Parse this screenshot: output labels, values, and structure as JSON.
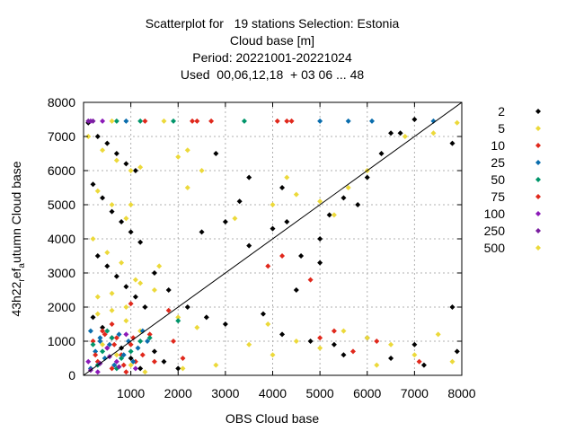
{
  "chart_data": {
    "type": "scatter",
    "title_lines": [
      "Scatterplot for   19 stations Selection: Estonia",
      "Cloud base [m]",
      "Period: 20221001-20221024",
      "Used  00,06,12,18  + 03 06 ... 48"
    ],
    "xlabel": "OBS Cloud base",
    "ylabel_main": "43h22",
    "ylabel_sub": "r",
    "ylabel_mid": "ef",
    "ylabel_sub2": "a",
    "ylabel_tail": "utumn Cloud base",
    "xlim": [
      0,
      8000
    ],
    "ylim": [
      0,
      8000
    ],
    "xticks": [
      1000,
      2000,
      3000,
      4000,
      5000,
      6000,
      7000,
      8000
    ],
    "yticks": [
      0,
      1000,
      2000,
      3000,
      4000,
      5000,
      6000,
      7000,
      8000
    ],
    "grid": true,
    "legend_position": "right",
    "diagonal": true,
    "series": [
      {
        "name": "2",
        "color": "#000000",
        "points": [
          [
            100,
            7400
          ],
          [
            300,
            7000
          ],
          [
            500,
            6800
          ],
          [
            700,
            6500
          ],
          [
            900,
            6200
          ],
          [
            1100,
            6000
          ],
          [
            200,
            5600
          ],
          [
            400,
            5200
          ],
          [
            600,
            4800
          ],
          [
            800,
            4500
          ],
          [
            1000,
            4200
          ],
          [
            1200,
            3900
          ],
          [
            300,
            3500
          ],
          [
            500,
            3200
          ],
          [
            700,
            2900
          ],
          [
            900,
            2600
          ],
          [
            1100,
            2300
          ],
          [
            1300,
            2000
          ],
          [
            200,
            1700
          ],
          [
            400,
            1400
          ],
          [
            600,
            1100
          ],
          [
            800,
            800
          ],
          [
            1000,
            500
          ],
          [
            1200,
            200
          ],
          [
            1500,
            3000
          ],
          [
            1800,
            2500
          ],
          [
            2200,
            2000
          ],
          [
            2600,
            1700
          ],
          [
            3000,
            1500
          ],
          [
            3500,
            3800
          ],
          [
            4000,
            4300
          ],
          [
            4300,
            4500
          ],
          [
            4600,
            3500
          ],
          [
            5000,
            4000
          ],
          [
            5200,
            4700
          ],
          [
            5500,
            5200
          ],
          [
            6000,
            5800
          ],
          [
            6300,
            6500
          ],
          [
            6500,
            7100
          ],
          [
            7000,
            7500
          ],
          [
            7800,
            6800
          ],
          [
            4200,
            1200
          ],
          [
            4800,
            1000
          ],
          [
            5300,
            900
          ],
          [
            6000,
            1100
          ],
          [
            6500,
            500
          ],
          [
            7200,
            300
          ],
          [
            7800,
            2000
          ],
          [
            2500,
            4200
          ],
          [
            3000,
            4500
          ],
          [
            3300,
            5100
          ],
          [
            2800,
            6500
          ],
          [
            3500,
            5800
          ],
          [
            4200,
            5500
          ],
          [
            5800,
            5000
          ],
          [
            6700,
            7100
          ],
          [
            5000,
            3300
          ],
          [
            4500,
            2500
          ],
          [
            3800,
            1800
          ],
          [
            5500,
            600
          ],
          [
            7000,
            900
          ],
          [
            7900,
            700
          ],
          [
            1500,
            700
          ],
          [
            1700,
            400
          ],
          [
            2000,
            200
          ]
        ]
      },
      {
        "name": "5",
        "color": "#ecd93a",
        "points": [
          [
            100,
            7000
          ],
          [
            400,
            6600
          ],
          [
            700,
            6300
          ],
          [
            1000,
            6000
          ],
          [
            300,
            5400
          ],
          [
            600,
            5000
          ],
          [
            900,
            4600
          ],
          [
            200,
            4000
          ],
          [
            500,
            3600
          ],
          [
            800,
            3300
          ],
          [
            1100,
            2800
          ],
          [
            300,
            2300
          ],
          [
            600,
            1900
          ],
          [
            900,
            1600
          ],
          [
            1200,
            1300
          ],
          [
            400,
            900
          ],
          [
            700,
            600
          ],
          [
            1000,
            300
          ],
          [
            1300,
            100
          ],
          [
            1500,
            2500
          ],
          [
            2000,
            1700
          ],
          [
            2400,
            1400
          ],
          [
            2800,
            300
          ],
          [
            3500,
            900
          ],
          [
            4000,
            600
          ],
          [
            4500,
            1000
          ],
          [
            5000,
            800
          ],
          [
            5500,
            1300
          ],
          [
            6000,
            1100
          ],
          [
            6500,
            900
          ],
          [
            7000,
            600
          ],
          [
            7500,
            1200
          ],
          [
            7800,
            400
          ],
          [
            6000,
            6000
          ],
          [
            5600,
            5500
          ],
          [
            5000,
            5100
          ],
          [
            4500,
            5300
          ],
          [
            4300,
            5800
          ],
          [
            4000,
            5000
          ],
          [
            7900,
            7400
          ],
          [
            7400,
            7100
          ],
          [
            6800,
            7000
          ],
          [
            2500,
            6000
          ],
          [
            2200,
            6600
          ],
          [
            3200,
            4600
          ],
          [
            5300,
            4700
          ],
          [
            3900,
            1500
          ],
          [
            6200,
            300
          ],
          [
            2100,
            200
          ]
        ]
      },
      {
        "name": "10",
        "color": "#e0281c",
        "points": [
          [
            200,
            1000
          ],
          [
            500,
            800
          ],
          [
            800,
            600
          ],
          [
            1100,
            400
          ],
          [
            400,
            1300
          ],
          [
            700,
            1100
          ],
          [
            1000,
            900
          ],
          [
            300,
            400
          ],
          [
            600,
            200
          ],
          [
            900,
            100
          ],
          [
            1500,
            400
          ],
          [
            1900,
            1000
          ],
          [
            2100,
            500
          ],
          [
            2700,
            7450
          ],
          [
            2300,
            7450
          ],
          [
            4100,
            7450
          ],
          [
            4300,
            7450
          ],
          [
            4800,
            2800
          ],
          [
            3900,
            3200
          ],
          [
            5000,
            1100
          ],
          [
            5300,
            1300
          ],
          [
            5700,
            700
          ],
          [
            6200,
            1000
          ],
          [
            7100,
            400
          ],
          [
            1400,
            1200
          ]
        ]
      },
      {
        "name": "25",
        "color": "#0a6dad",
        "points": [
          [
            150,
            1300
          ],
          [
            350,
            1100
          ],
          [
            550,
            900
          ],
          [
            750,
            1200
          ],
          [
            950,
            1000
          ],
          [
            1150,
            800
          ],
          [
            250,
            700
          ],
          [
            450,
            500
          ],
          [
            650,
            300
          ],
          [
            850,
            600
          ],
          [
            1050,
            400
          ],
          [
            1250,
            1300
          ],
          [
            1350,
            1000
          ],
          [
            150,
            200
          ],
          [
            350,
            1000
          ],
          [
            5000,
            7450
          ],
          [
            5600,
            7450
          ],
          [
            6100,
            7450
          ],
          [
            7400,
            7450
          ],
          [
            900,
            7450
          ]
        ]
      },
      {
        "name": "50",
        "color": "#00956a",
        "points": [
          [
            200,
            900
          ],
          [
            400,
            700
          ],
          [
            600,
            1100
          ],
          [
            800,
            500
          ],
          [
            1000,
            700
          ],
          [
            1200,
            1000
          ],
          [
            300,
            300
          ],
          [
            500,
            1300
          ],
          [
            700,
            200
          ],
          [
            1400,
            1100
          ],
          [
            1900,
            7450
          ],
          [
            2000,
            1600
          ],
          [
            3400,
            7450
          ],
          [
            1200,
            7450
          ],
          [
            700,
            7450
          ]
        ]
      },
      {
        "name": "75",
        "color": "#e0281c",
        "points": [
          [
            250,
            600
          ],
          [
            450,
            1200
          ],
          [
            650,
            900
          ],
          [
            850,
            300
          ],
          [
            1050,
            1100
          ],
          [
            1250,
            600
          ],
          [
            1300,
            7450
          ],
          [
            2400,
            7450
          ],
          [
            4400,
            7450
          ],
          [
            4200,
            3500
          ],
          [
            1000,
            2100
          ],
          [
            1800,
            1900
          ],
          [
            600,
            1500
          ]
        ]
      },
      {
        "name": "100",
        "color": "#8c1ab8",
        "points": [
          [
            150,
            7450
          ],
          [
            400,
            7450
          ],
          [
            100,
            400
          ],
          [
            300,
            100
          ],
          [
            500,
            800
          ],
          [
            700,
            400
          ],
          [
            900,
            1200
          ],
          [
            1100,
            200
          ]
        ]
      },
      {
        "name": "250",
        "color": "#7a1ea0",
        "points": [
          [
            100,
            7450
          ],
          [
            200,
            7450
          ],
          [
            150,
            150
          ],
          [
            350,
            350
          ],
          [
            550,
            550
          ],
          [
            750,
            250
          ]
        ]
      },
      {
        "name": "500",
        "color": "#ecd93a",
        "points": [
          [
            600,
            7450
          ],
          [
            1700,
            7450
          ],
          [
            1000,
            5000
          ],
          [
            1200,
            6100
          ],
          [
            2200,
            5500
          ],
          [
            300,
            1800
          ],
          [
            600,
            2400
          ],
          [
            900,
            2000
          ],
          [
            1200,
            2700
          ],
          [
            1600,
            3200
          ],
          [
            2000,
            6400
          ]
        ]
      }
    ]
  }
}
